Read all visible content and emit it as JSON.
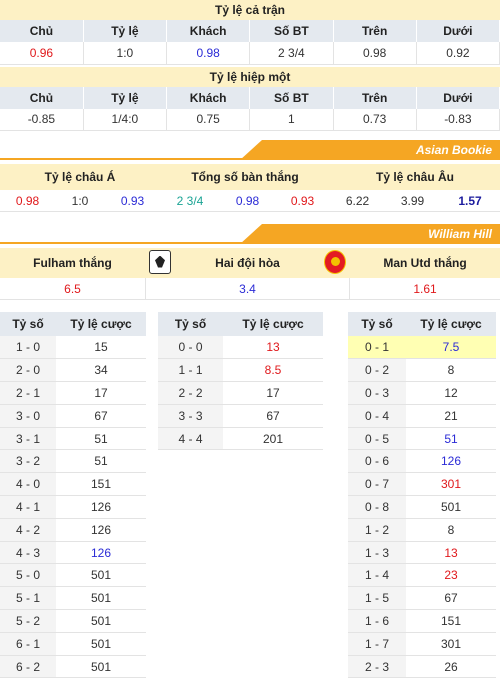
{
  "full_match": {
    "title": "Tỷ lệ cả trận",
    "headers": [
      "Chủ",
      "Tỷ lệ",
      "Khách",
      "Số BT",
      "Trên",
      "Dưới"
    ],
    "values": [
      "0.96",
      "1:0",
      "0.98",
      "2 3/4",
      "0.98",
      "0.92"
    ]
  },
  "first_half": {
    "title": "Tỷ lệ hiệp một",
    "headers": [
      "Chủ",
      "Tỷ lệ",
      "Khách",
      "Số BT",
      "Trên",
      "Dưới"
    ],
    "values": [
      "-0.85",
      "1/4:0",
      "0.75",
      "1",
      "0.73",
      "-0.83"
    ]
  },
  "asian_bookie": {
    "banner": "Asian Bookie",
    "headers": [
      "Tỷ lệ châu Á",
      "Tổng số bàn thắng",
      "Tỷ lệ châu Âu"
    ],
    "values": [
      "0.98",
      "1:0",
      "0.93",
      "2 3/4",
      "0.98",
      "0.93",
      "6.22",
      "3.99",
      "1.57"
    ]
  },
  "william_hill": {
    "banner": "William Hill",
    "home_label": "Fulham thắng",
    "draw_label": "Hai đội hòa",
    "away_label": "Man Utd thắng",
    "home_badge": "fulham-crest-icon",
    "away_badge": "man-utd-crest-icon",
    "home_odds": "6.5",
    "draw_odds": "3.4",
    "away_odds": "1.61"
  },
  "correct_score": {
    "col_score": "Tỷ số",
    "col_odds": "Tỷ lệ cược",
    "home": [
      [
        "1 - 0",
        "15"
      ],
      [
        "2 - 0",
        "34"
      ],
      [
        "2 - 1",
        "17"
      ],
      [
        "3 - 0",
        "67"
      ],
      [
        "3 - 1",
        "51"
      ],
      [
        "3 - 2",
        "51"
      ],
      [
        "4 - 0",
        "151"
      ],
      [
        "4 - 1",
        "126"
      ],
      [
        "4 - 2",
        "126"
      ],
      [
        "4 - 3",
        "126"
      ],
      [
        "5 - 0",
        "501"
      ],
      [
        "5 - 1",
        "501"
      ],
      [
        "5 - 2",
        "501"
      ],
      [
        "6 - 1",
        "501"
      ],
      [
        "6 - 2",
        "501"
      ]
    ],
    "draw": [
      [
        "0 - 0",
        "13"
      ],
      [
        "1 - 1",
        "8.5"
      ],
      [
        "2 - 2",
        "17"
      ],
      [
        "3 - 3",
        "67"
      ],
      [
        "4 - 4",
        "201"
      ]
    ],
    "away": [
      [
        "0 - 1",
        "7.5"
      ],
      [
        "0 - 2",
        "8"
      ],
      [
        "0 - 3",
        "12"
      ],
      [
        "0 - 4",
        "21"
      ],
      [
        "0 - 5",
        "51"
      ],
      [
        "0 - 6",
        "126"
      ],
      [
        "0 - 7",
        "301"
      ],
      [
        "0 - 8",
        "501"
      ],
      [
        "1 - 2",
        "8"
      ],
      [
        "1 - 3",
        "13"
      ],
      [
        "1 - 4",
        "23"
      ],
      [
        "1 - 5",
        "67"
      ],
      [
        "1 - 6",
        "151"
      ],
      [
        "1 - 7",
        "301"
      ],
      [
        "2 - 3",
        "26"
      ]
    ]
  },
  "colors": {
    "accent": "#f5a623",
    "header_bg": "#fdf1c5",
    "red": "#e0181b",
    "blue": "#2b2bd6",
    "teal": "#1aa394"
  }
}
